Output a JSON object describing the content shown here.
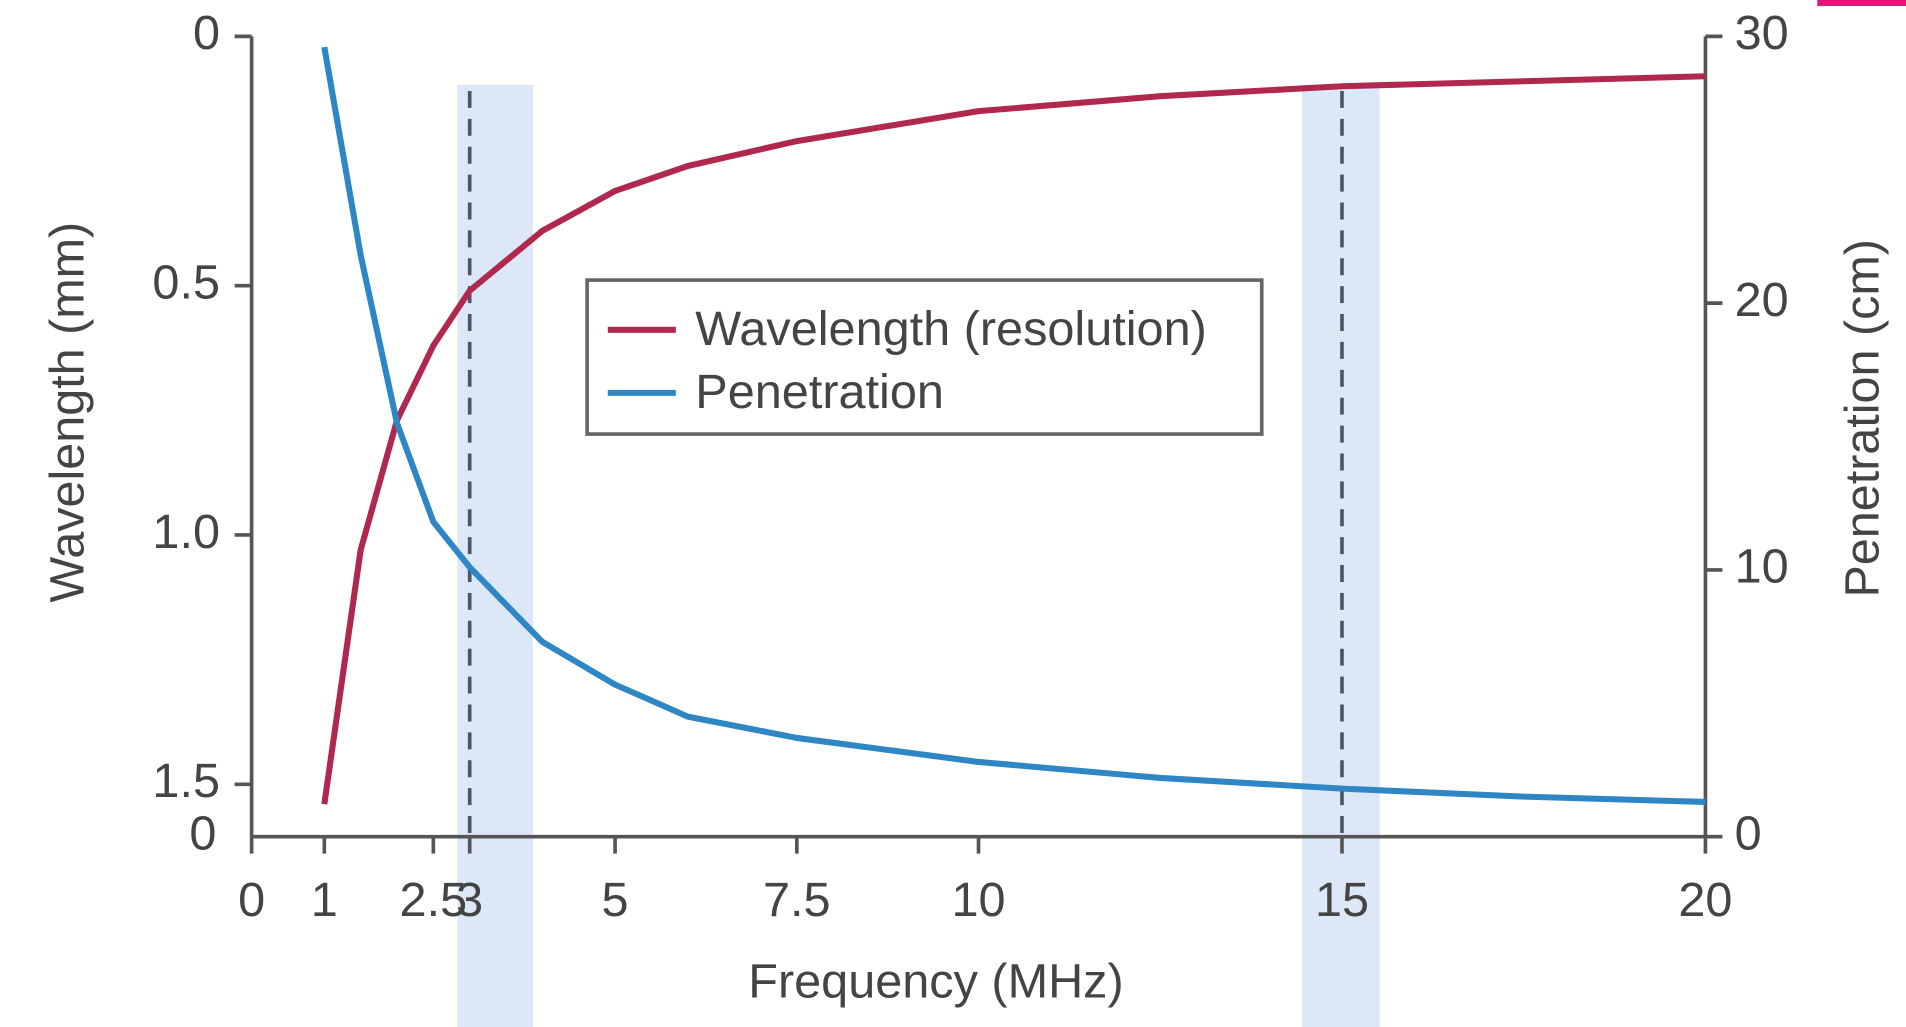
{
  "chart_data": {
    "type": "line",
    "xlabel": "Frequency (MHz)",
    "ylabel": "Wavelength (mm)",
    "y2label": "Penetration (cm)",
    "x": [
      1,
      1.5,
      2,
      2.5,
      3,
      4,
      5,
      6,
      7.5,
      10,
      12.5,
      15,
      17.5,
      20
    ],
    "series": [
      {
        "name": "Wavelength (resolution)",
        "color": "#b0284e",
        "axis": "y",
        "values": [
          1.54,
          1.03,
          0.77,
          0.62,
          0.51,
          0.39,
          0.31,
          0.26,
          0.21,
          0.15,
          0.12,
          0.1,
          0.09,
          0.08
        ]
      },
      {
        "name": "Penetration",
        "color": "#2f86c4",
        "axis": "y2",
        "values": [
          29.6,
          21.8,
          15.5,
          11.8,
          10.1,
          7.3,
          5.7,
          4.5,
          3.7,
          2.8,
          2.2,
          1.8,
          1.5,
          1.3
        ]
      }
    ],
    "xlim": [
      0,
      20
    ],
    "xticks": [
      0,
      1,
      2.5,
      3,
      5,
      7.5,
      10,
      15,
      20
    ],
    "ylim": [
      0,
      1.605
    ],
    "y_inverted": true,
    "yticks": [
      0,
      0.5,
      {
        "value": 1,
        "label": "1.0"
      },
      1.5
    ],
    "y_origin_label": "0",
    "y2lim": [
      0,
      30
    ],
    "y2ticks": [
      0,
      10,
      20,
      30
    ],
    "reference_lines": [
      3,
      15
    ],
    "highlight_bands": [
      [
        2.83,
        3.87
      ],
      [
        14.45,
        15.52
      ]
    ],
    "band_color": "#dce8f7",
    "legend": "upper center"
  }
}
